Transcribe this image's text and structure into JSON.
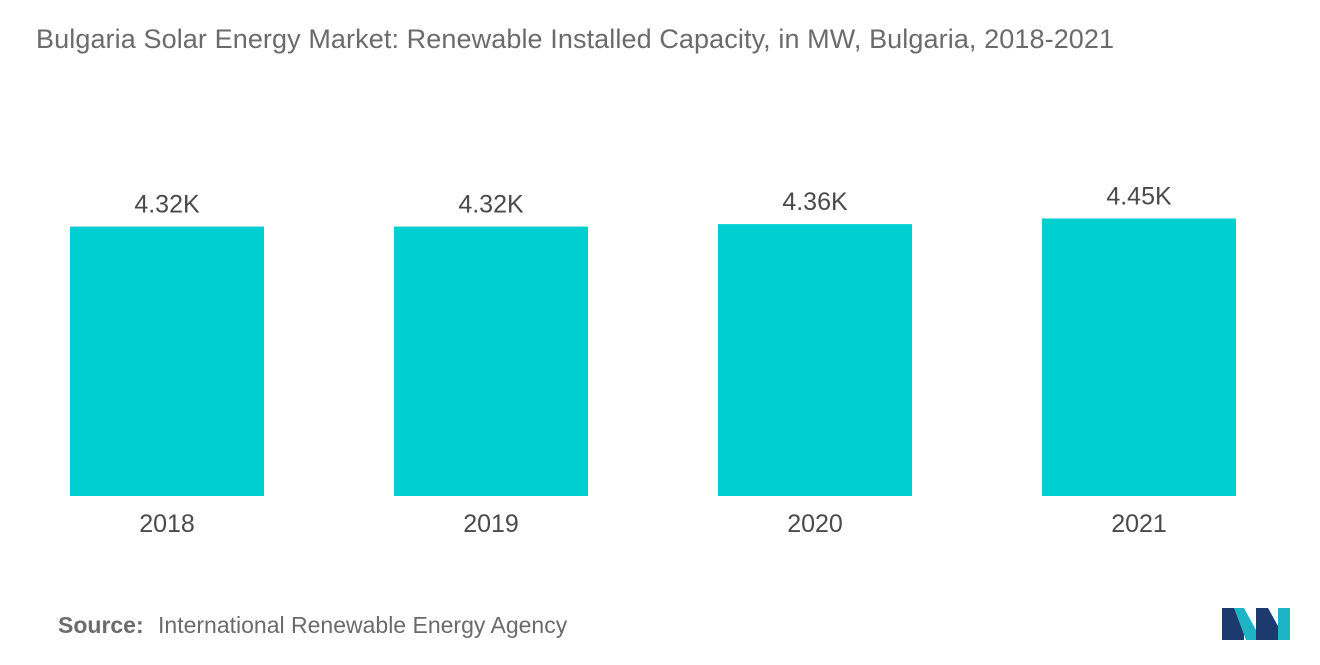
{
  "title": "Bulgaria Solar Energy Market: Renewable Installed Capacity, in MW, Bulgaria, 2018-2021",
  "source": {
    "label": "Source:",
    "text": "International Renewable Energy Agency"
  },
  "colors": {
    "bar": "#00cfd1",
    "text": "#4a4a4a",
    "title": "#6b6b6b",
    "logo_dark": "#1c3a6e",
    "logo_teal": "#1fb4c4"
  },
  "chart_data": {
    "type": "bar",
    "title": "Bulgaria Solar Energy Market: Renewable Installed Capacity, in MW, Bulgaria, 2018-2021",
    "xlabel": "",
    "ylabel": "",
    "categories": [
      "2018",
      "2019",
      "2020",
      "2021"
    ],
    "values": [
      4320,
      4320,
      4360,
      4450
    ],
    "value_labels": [
      "4.32K",
      "4.32K",
      "4.36K",
      "4.45K"
    ],
    "ylim": [
      0,
      5000
    ],
    "grid": false,
    "legend": "none"
  },
  "logo": {
    "icon": "mordor-intelligence-logo-icon"
  }
}
